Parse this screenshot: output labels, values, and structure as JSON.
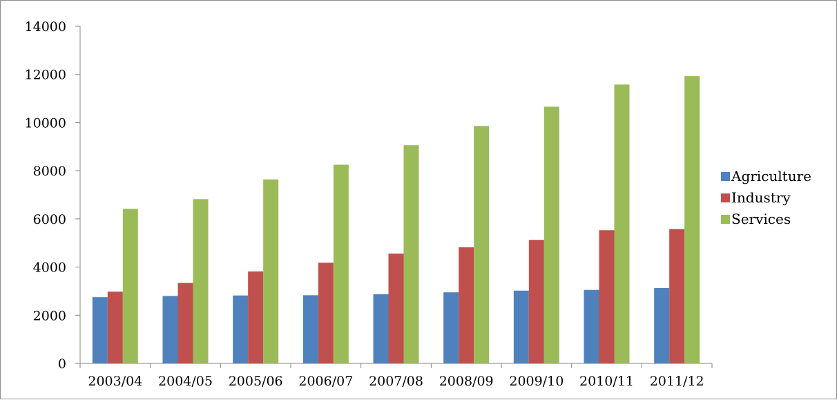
{
  "chart_data": {
    "type": "bar",
    "title": "",
    "xlabel": "",
    "ylabel": "",
    "categories": [
      "2003/04",
      "2004/05",
      "2005/06",
      "2006/07",
      "2007/08",
      "2008/09",
      "2009/10",
      "2010/11",
      "2011/12"
    ],
    "series": [
      {
        "name": "Agriculture",
        "color": "#4f81bd",
        "values": [
          2750,
          2800,
          2820,
          2830,
          2870,
          2950,
          3020,
          3050,
          3130
        ]
      },
      {
        "name": "Industry",
        "color": "#c0504d",
        "values": [
          2980,
          3340,
          3820,
          4180,
          4560,
          4820,
          5130,
          5530,
          5580
        ]
      },
      {
        "name": "Services",
        "color": "#9bbb59",
        "values": [
          6420,
          6820,
          7640,
          8250,
          9060,
          9860,
          10660,
          11580,
          11930
        ]
      }
    ],
    "ylim": [
      0,
      14000
    ],
    "yticks": [
      0,
      2000,
      4000,
      6000,
      8000,
      10000,
      12000,
      14000
    ],
    "grid": false,
    "legend": "right"
  }
}
